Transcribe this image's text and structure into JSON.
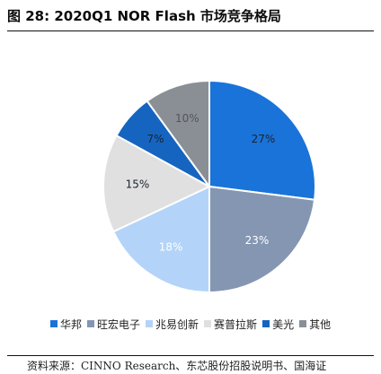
{
  "title": "图 28:  2020Q1 NOR Flash 市场竞争格局",
  "source": "资料来源：CINNO Research、东芯股份招股说明书、国海证",
  "chart_data": {
    "type": "pie",
    "title": "",
    "labels": [
      "华邦",
      "旺宏电子",
      "兆易创新",
      "赛普拉斯",
      "美光",
      "其他"
    ],
    "values": [
      27,
      23,
      18,
      15,
      7,
      10
    ],
    "value_labels": [
      "27%",
      "23%",
      "18%",
      "15%",
      "7%",
      "10%"
    ],
    "colors": [
      "#1a73d9",
      "#8496b2",
      "#b3d4f8",
      "#e0e0e0",
      "#1565c0",
      "#8a8f96"
    ],
    "label_colors": [
      "#1b2330",
      "#ffffff",
      "#ffffff",
      "#1b2330",
      "#1b2330",
      "#555555"
    ],
    "start_angle_deg": 0,
    "direction": "clockwise",
    "legend_position": "bottom"
  }
}
